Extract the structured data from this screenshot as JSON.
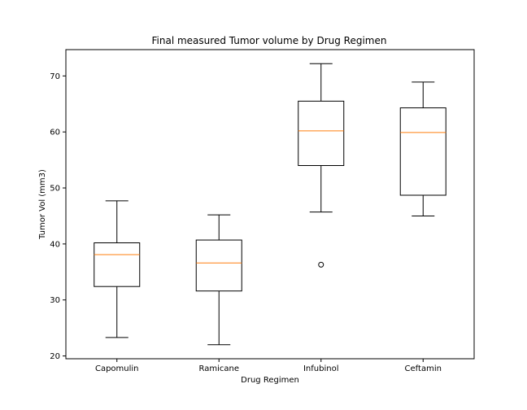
{
  "chart_data": {
    "type": "box",
    "title": "Final measured Tumor volume by Drug Regimen",
    "xlabel": "Drug Regimen",
    "ylabel": "Tumor Vol (mm3)",
    "categories": [
      "Capomulin",
      "Ramicane",
      "Infubinol",
      "Ceftamin"
    ],
    "boxes": [
      {
        "name": "Capomulin",
        "whisker_low": 23.3,
        "q1": 32.4,
        "median": 38.1,
        "q3": 40.2,
        "whisker_high": 47.7,
        "outliers": []
      },
      {
        "name": "Ramicane",
        "whisker_low": 22.0,
        "q1": 31.6,
        "median": 36.6,
        "q3": 40.7,
        "whisker_high": 45.2,
        "outliers": []
      },
      {
        "name": "Infubinol",
        "whisker_low": 45.7,
        "q1": 54.0,
        "median": 60.2,
        "q3": 65.5,
        "whisker_high": 72.2,
        "outliers": [
          36.3
        ]
      },
      {
        "name": "Ceftamin",
        "whisker_low": 45.0,
        "q1": 48.7,
        "median": 59.9,
        "q3": 64.3,
        "whisker_high": 68.9,
        "outliers": []
      }
    ],
    "y_ticks": [
      20,
      30,
      40,
      50,
      60,
      70
    ],
    "ylim": [
      19.5,
      74.7
    ],
    "grid": false,
    "colors": {
      "box": "#000000",
      "median": "#ff7f0e",
      "outlier": "#000000"
    }
  }
}
